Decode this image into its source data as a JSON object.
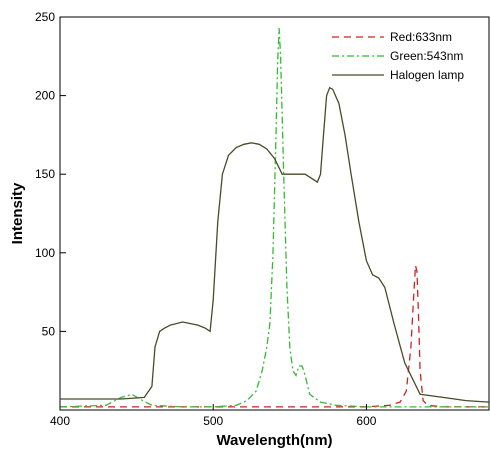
{
  "chart_data": {
    "type": "line",
    "title": "",
    "xlabel": "Wavelength(nm)",
    "ylabel": "Intensity",
    "xlim": [
      400,
      680
    ],
    "ylim": [
      0,
      250
    ],
    "x_ticks": [
      400,
      500,
      600
    ],
    "y_ticks": [
      50,
      100,
      150,
      200,
      250
    ],
    "grid": false,
    "legend_position": "top-right",
    "series": [
      {
        "name": "Red:633nm",
        "color": "#cc2222",
        "dash": "dashed",
        "x": [
          400,
          600,
          615,
          622,
          626,
          629,
          631,
          632,
          633,
          634,
          635,
          637,
          640,
          650,
          680
        ],
        "y": [
          2,
          2,
          3,
          5,
          12,
          40,
          75,
          92,
          88,
          60,
          25,
          6,
          3,
          2,
          2
        ]
      },
      {
        "name": "Green:543nm",
        "color": "#33bb33",
        "dash": "dashdot",
        "x": [
          400,
          430,
          440,
          447,
          452,
          460,
          480,
          500,
          515,
          522,
          528,
          532,
          535,
          537,
          539,
          541,
          542,
          543,
          544,
          546,
          548,
          550,
          552,
          554,
          556,
          558,
          560,
          563,
          570,
          580,
          600,
          620,
          640,
          680
        ],
        "y": [
          2,
          3,
          8,
          10,
          7,
          3,
          2,
          2,
          3,
          6,
          12,
          25,
          40,
          55,
          100,
          175,
          220,
          243,
          225,
          150,
          80,
          40,
          25,
          22,
          28,
          28,
          22,
          10,
          5,
          3,
          2,
          2,
          2,
          2
        ]
      },
      {
        "name": "Halogen lamp",
        "color": "#4a4a28",
        "dash": "solid",
        "x": [
          400,
          440,
          455,
          460,
          462,
          465,
          468,
          472,
          480,
          490,
          495,
          498,
          500,
          503,
          506,
          510,
          515,
          520,
          525,
          530,
          535,
          540,
          545,
          550,
          560,
          568,
          570,
          572,
          574,
          576,
          578,
          582,
          586,
          590,
          595,
          600,
          604,
          608,
          612,
          618,
          625,
          635,
          650,
          665,
          680
        ],
        "y": [
          7,
          7,
          8,
          15,
          40,
          50,
          52,
          54,
          56,
          54,
          52,
          50,
          70,
          120,
          150,
          162,
          167,
          169,
          170,
          169,
          166,
          160,
          150,
          150,
          150,
          145,
          150,
          175,
          200,
          205,
          204,
          195,
          175,
          150,
          120,
          95,
          86,
          84,
          78,
          55,
          30,
          10,
          8,
          6,
          5
        ]
      }
    ]
  }
}
